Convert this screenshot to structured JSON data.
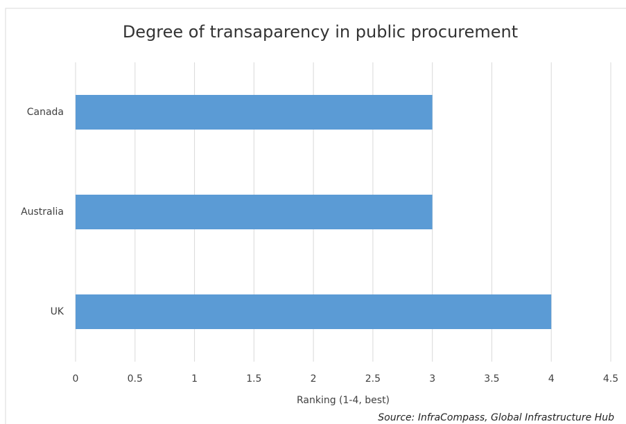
{
  "chart_data": {
    "type": "bar",
    "orientation": "horizontal",
    "title": "Degree of transaparency in public procurement",
    "categories": [
      "Canada",
      "Australia",
      "UK"
    ],
    "values": [
      3,
      3,
      4
    ],
    "color": "#5b9bd5",
    "xlim": [
      0,
      4.5
    ],
    "xticks": [
      0,
      0.5,
      1,
      1.5,
      2,
      2.5,
      3,
      3.5,
      4,
      4.5
    ],
    "xlabel": "Ranking (1-4, best)",
    "source": "Source: InfraCompass, Global Infrastructure Hub",
    "grid": true
  }
}
